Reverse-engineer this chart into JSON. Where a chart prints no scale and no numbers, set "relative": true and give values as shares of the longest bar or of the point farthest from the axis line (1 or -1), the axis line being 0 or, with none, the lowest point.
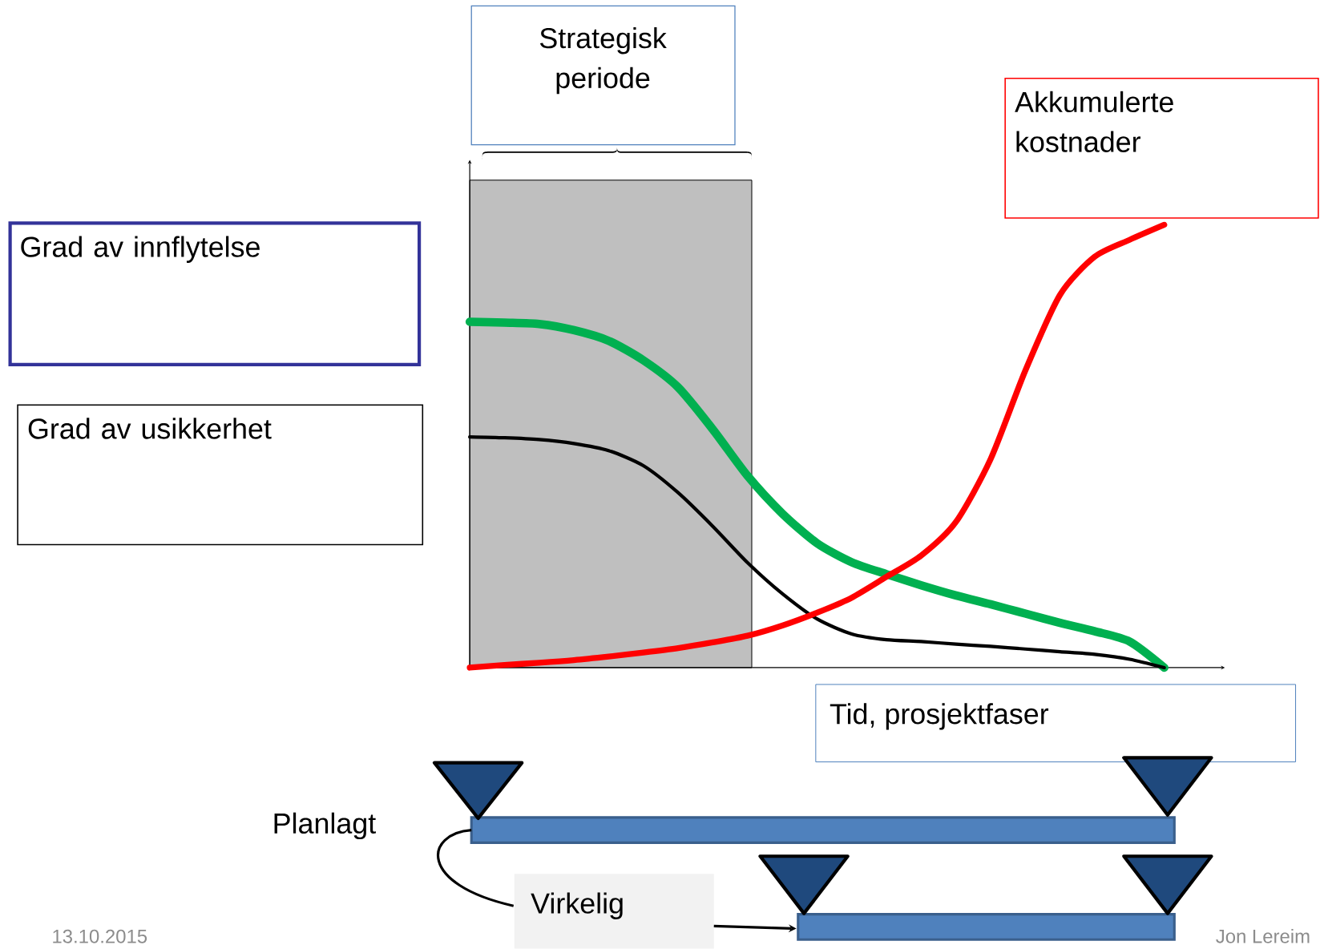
{
  "chart_data": {
    "type": "line",
    "relative": true,
    "xlabel": "Tid, prosjektfaser",
    "categories": [
      null,
      null,
      null,
      null,
      null,
      null,
      null,
      null,
      null,
      null,
      null,
      null,
      null,
      null,
      null,
      null,
      null,
      null,
      null,
      null,
      null
    ],
    "series": [
      {
        "color": "#00b050",
        "values": [
          0.781,
          0.779,
          0.776,
          0.762,
          0.738,
          0.694,
          0.633,
          0.538,
          0.433,
          0.348,
          0.281,
          0.238,
          0.211,
          0.186,
          0.163,
          0.143,
          0.122,
          0.101,
          0.082,
          0.059,
          0
        ]
      },
      {
        "color": "#000000",
        "values": [
          0.521,
          0.519,
          0.515,
          0.506,
          0.49,
          0.456,
          0.395,
          0.319,
          0.237,
          0.167,
          0.11,
          0.076,
          0.063,
          0.059,
          0.053,
          0.048,
          0.042,
          0.036,
          0.03,
          0.019,
          0
        ]
      },
      {
        "color": "#ff0000",
        "values": [
          0,
          0.006,
          0.011,
          0.017,
          0.025,
          0.034,
          0.044,
          0.057,
          0.072,
          0.095,
          0.124,
          0.158,
          0.205,
          0.253,
          0.329,
          0.471,
          0.671,
          0.842,
          0.928,
          0.966,
          1
        ]
      }
    ],
    "annotations": [
      "Strategisk periode",
      "Grad av innflytelse",
      "Grad av usikkerhet",
      "Akkumulerte kostnader",
      "Planlagt",
      "Virkelig",
      "13.10.2015",
      "Jon Lereim"
    ]
  }
}
